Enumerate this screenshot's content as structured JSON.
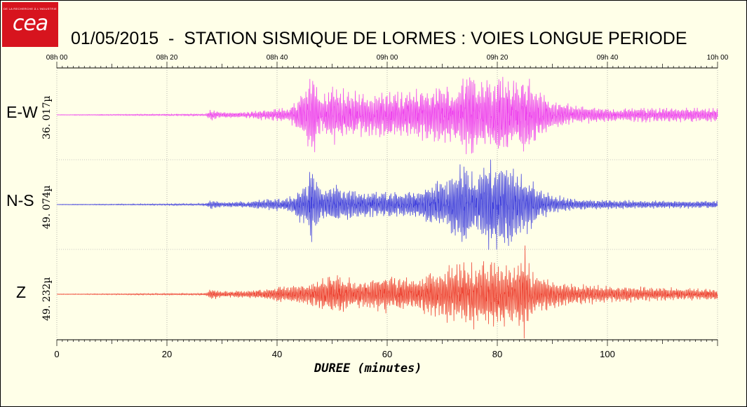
{
  "logo": {
    "word": "cea",
    "tagline": "DE LA RECHERCHE À L'INDUSTRIE",
    "bg_color": "#d7141e"
  },
  "title": "01/05/2015  -  STATION SISMIQUE DE LORMES : VOIES LONGUE PERIODE",
  "chart_data": {
    "type": "line",
    "title": "01/05/2015  -  STATION SISMIQUE DE LORMES : VOIES LONGUE PERIODE",
    "xlabel": "DUREE (minutes)",
    "xlim": [
      0,
      120
    ],
    "x_ticks": [
      0,
      20,
      40,
      60,
      80,
      100
    ],
    "top_axis_ticks": [
      "08h 00",
      "08h 20",
      "08h 40",
      "09h 00",
      "09h 20",
      "09h 40",
      "10h 00"
    ],
    "grid": true,
    "series": [
      {
        "name": "E-W",
        "scale": "36. 017µ",
        "color": "#ee44ee",
        "envelope_minutes": [
          0,
          27,
          28,
          30,
          35,
          38,
          42,
          45,
          46.5,
          48,
          50,
          55,
          60,
          65,
          70,
          73,
          75,
          77,
          80,
          83,
          85,
          88,
          90,
          95,
          100,
          110,
          120
        ],
        "envelope_amplitude": [
          0.005,
          0.02,
          0.12,
          0.06,
          0.07,
          0.12,
          0.15,
          0.55,
          1.0,
          0.35,
          0.65,
          0.45,
          0.5,
          0.55,
          0.6,
          0.7,
          1.0,
          0.75,
          0.9,
          0.8,
          0.85,
          0.55,
          0.3,
          0.2,
          0.15,
          0.15,
          0.15
        ]
      },
      {
        "name": "N-S",
        "scale": "49. 074µ",
        "color": "#4444dd",
        "envelope_minutes": [
          0,
          27,
          28,
          30,
          35,
          38,
          42,
          45,
          46.5,
          48,
          50,
          55,
          60,
          65,
          70,
          72,
          74,
          76,
          78,
          80,
          82,
          84,
          86,
          88,
          90,
          95,
          100,
          110,
          120
        ],
        "envelope_amplitude": [
          0.005,
          0.02,
          0.1,
          0.05,
          0.07,
          0.12,
          0.14,
          0.45,
          0.85,
          0.3,
          0.45,
          0.3,
          0.28,
          0.3,
          0.55,
          0.7,
          1.0,
          0.6,
          0.95,
          0.95,
          0.9,
          0.75,
          0.55,
          0.35,
          0.2,
          0.12,
          0.1,
          0.08,
          0.08
        ]
      },
      {
        "name": "Z",
        "scale": "49. 232µ",
        "color": "#ee4433",
        "envelope_minutes": [
          0,
          27,
          28,
          30,
          35,
          38,
          42,
          45,
          48,
          50,
          55,
          60,
          65,
          70,
          73,
          75,
          78,
          80,
          82,
          84,
          85,
          86,
          88,
          90,
          95,
          100,
          110,
          120
        ],
        "envelope_amplitude": [
          0.005,
          0.02,
          0.12,
          0.07,
          0.08,
          0.12,
          0.2,
          0.2,
          0.35,
          0.45,
          0.3,
          0.4,
          0.35,
          0.55,
          0.65,
          0.7,
          0.65,
          0.75,
          0.65,
          0.7,
          1.0,
          0.5,
          0.4,
          0.3,
          0.22,
          0.18,
          0.15,
          0.12
        ]
      }
    ]
  }
}
